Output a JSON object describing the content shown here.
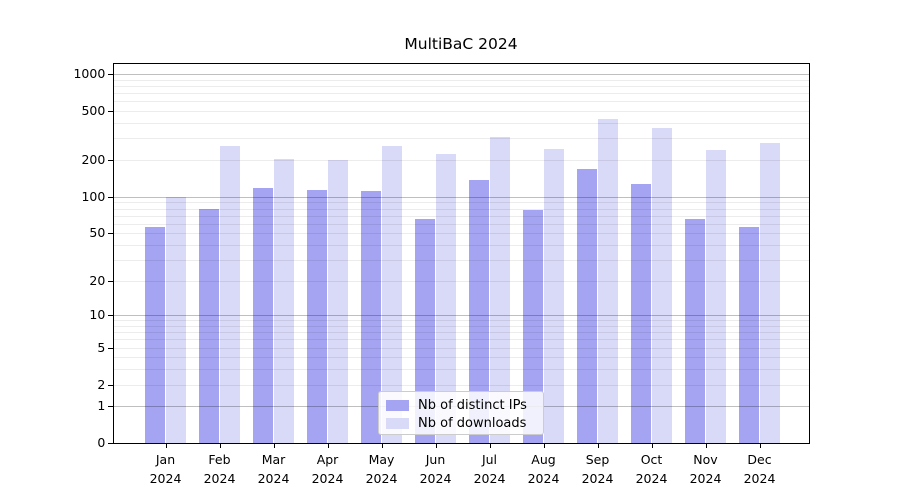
{
  "chart_data": {
    "type": "bar",
    "title": "MultiBaC 2024",
    "months": [
      "Jan",
      "Feb",
      "Mar",
      "Apr",
      "May",
      "Jun",
      "Jul",
      "Aug",
      "Sep",
      "Oct",
      "Nov",
      "Dec"
    ],
    "year_label": "2024",
    "series": [
      {
        "name": "Nb of distinct IPs",
        "color": "#a4a4f2",
        "values": [
          56,
          80,
          118,
          113,
          112,
          65,
          136,
          78,
          168,
          126,
          65,
          56
        ]
      },
      {
        "name": "Nb of downloads",
        "color": "#d9d9f8",
        "values": [
          100,
          260,
          205,
          200,
          260,
          225,
          310,
          245,
          430,
          365,
          240,
          275
        ]
      }
    ],
    "yscale": "symlog",
    "yticks": [
      0,
      1,
      2,
      5,
      10,
      20,
      50,
      100,
      200,
      500,
      1000
    ],
    "ylim": [
      0,
      1240
    ],
    "grid": true,
    "legend_position": "lower center",
    "colors": {
      "major_gridline": "#bababa",
      "minor_gridline": "#ebebeb",
      "spine": "#000000",
      "background": "#ffffff"
    }
  }
}
